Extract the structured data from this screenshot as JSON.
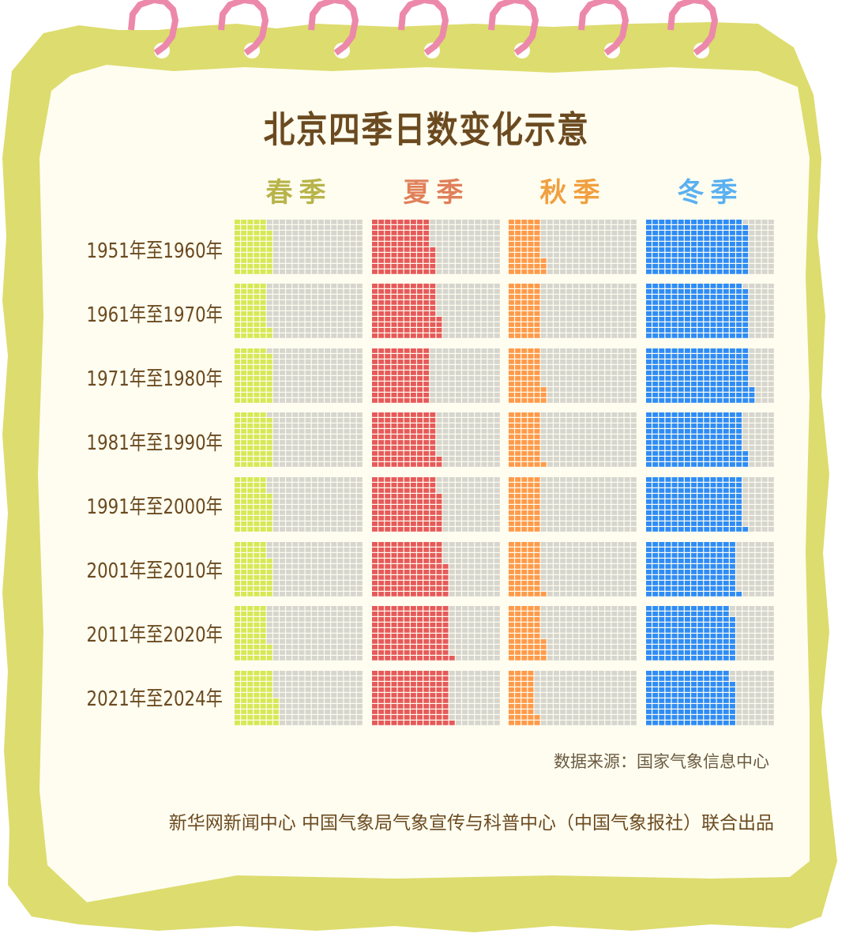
{
  "title": "北京四季日数变化示意",
  "source": "数据来源：国家气象信息中心",
  "credit": "新华网新闻中心 中国气象局气象宣传与科普中心（中国气象报社）联合出品",
  "colors": {
    "frame": "#dddc6e",
    "paper": "#fefdf0",
    "ring": "#ec89aa",
    "empty": "#d6d5ce",
    "title": "#6b4a20"
  },
  "chart_data": {
    "type": "waffle",
    "unit_note": "",
    "grid": {
      "columns": 20,
      "rows": 10
    },
    "categories": [
      "1951年至1960年",
      "1961年至1970年",
      "1971年至1980年",
      "1981年至1990年",
      "1991年至2000年",
      "2001年至2010年",
      "2011年至2020年",
      "2021年至2024年"
    ],
    "series": [
      {
        "name": "春季",
        "color": "#d6e855",
        "label_color": "#b8b44a",
        "values": [
          58,
          52,
          59,
          59,
          57,
          57,
          53,
          65
        ]
      },
      {
        "name": "夏季",
        "color": "#e65a5a",
        "label_color": "#e0805a",
        "values": [
          95,
          104,
          90,
          102,
          107,
          116,
          121,
          121
        ]
      },
      {
        "name": "秋季",
        "color": "#ff9a4a",
        "label_color": "#f0a040",
        "values": [
          53,
          50,
          53,
          51,
          50,
          51,
          54,
          42
        ]
      },
      {
        "name": "冬季",
        "color": "#2f8cf5",
        "label_color": "#5ab0f0",
        "values": [
          159,
          159,
          163,
          153,
          151,
          141,
          138,
          138
        ]
      }
    ]
  }
}
